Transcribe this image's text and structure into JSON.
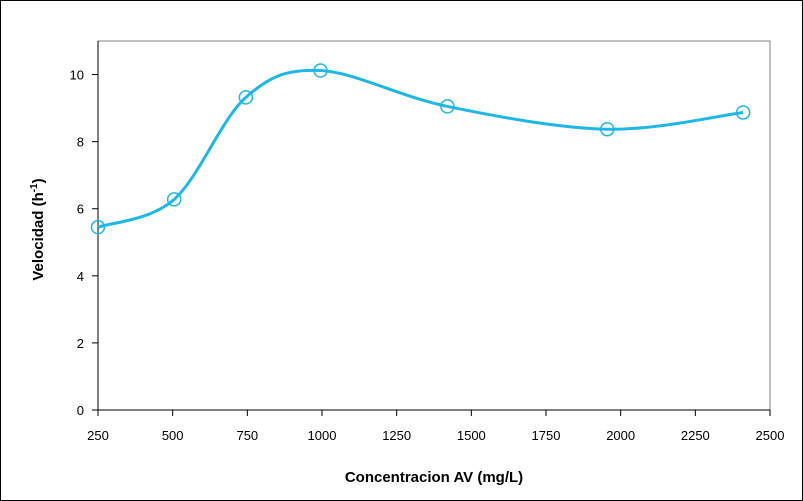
{
  "chart_data": {
    "type": "scatter",
    "title": "",
    "xlabel": "Concentracion AV (mg/L)",
    "ylabel": {
      "prefix": "Velocidad (h",
      "superscript": "-1",
      "suffix": ")"
    },
    "xlim": [
      250,
      2500
    ],
    "ylim": [
      0,
      11
    ],
    "xticks": [
      250,
      500,
      750,
      1000,
      1250,
      1500,
      1750,
      2000,
      2250,
      2500
    ],
    "yticks": [
      0,
      2,
      4,
      6,
      8,
      10
    ],
    "grid": false,
    "legend": "none",
    "series": [
      {
        "marker": "open-circle",
        "line": "smooth",
        "color": "#1fb6e8",
        "x": [
          250,
          505,
          745,
          995,
          1420,
          1955,
          2410
        ],
        "y": [
          5.45,
          6.28,
          9.32,
          10.12,
          9.05,
          8.37,
          8.87
        ]
      }
    ]
  }
}
